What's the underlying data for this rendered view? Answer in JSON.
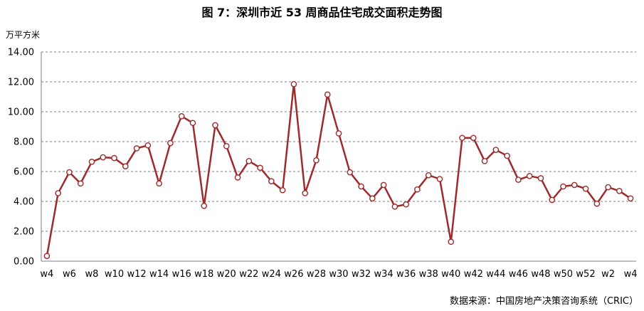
{
  "title": "图 7：深圳市近 53 周商品住宅成交面积走势图",
  "unit_label": "万平方米",
  "source": "数据来源：中国房地产决策咨询系统（CRIC）",
  "colors": {
    "series": "#9e2a2b",
    "grid": "#7f7f7f",
    "axis": "#7f7f7f",
    "marker_fill": "#ffffff"
  },
  "chart_data": {
    "type": "line",
    "title": "图 7：深圳市近 53 周商品住宅成交面积走势图",
    "ylabel": "万平方米",
    "xlabel": "",
    "ylim": [
      0,
      14
    ],
    "yticks": [
      "0.00",
      "2.00",
      "4.00",
      "6.00",
      "8.00",
      "10.00",
      "12.00",
      "14.00"
    ],
    "grid": "horizontal dashed",
    "legend": "none",
    "categories": [
      "w4",
      "w5",
      "w6",
      "w7",
      "w8",
      "w9",
      "w10",
      "w11",
      "w12",
      "w13",
      "w14",
      "w15",
      "w16",
      "w17",
      "w18",
      "w19",
      "w20",
      "w21",
      "w22",
      "w23",
      "w24",
      "w25",
      "w26",
      "w27",
      "w28",
      "w29",
      "w30",
      "w31",
      "w32",
      "w33",
      "w34",
      "w35",
      "w36",
      "w37",
      "w38",
      "w39",
      "w40",
      "w41",
      "w42",
      "w43",
      "w44",
      "w45",
      "w46",
      "w47",
      "w48",
      "w49",
      "w50",
      "w51",
      "w52",
      "w1",
      "w2",
      "w3",
      "w4"
    ],
    "xtick_labels": [
      "w4",
      "w6",
      "w8",
      "w10",
      "w12",
      "w14",
      "w16",
      "w18",
      "w20",
      "w22",
      "w24",
      "w26",
      "w28",
      "w30",
      "w32",
      "w34",
      "w36",
      "w38",
      "w40",
      "w42",
      "w44",
      "w46",
      "w48",
      "w50",
      "w52",
      "w2",
      "w4"
    ],
    "values": [
      0.35,
      4.55,
      5.95,
      5.2,
      6.65,
      6.95,
      6.9,
      6.35,
      7.55,
      7.75,
      5.2,
      7.9,
      9.7,
      9.25,
      3.7,
      9.1,
      7.7,
      5.6,
      6.7,
      6.25,
      5.35,
      4.75,
      11.85,
      4.55,
      6.75,
      11.15,
      8.55,
      5.95,
      5.0,
      4.2,
      5.1,
      3.65,
      3.8,
      4.8,
      5.75,
      5.5,
      1.3,
      8.25,
      8.25,
      6.7,
      7.45,
      7.05,
      5.45,
      5.7,
      5.55,
      4.1,
      5.0,
      5.1,
      4.85,
      3.85,
      4.95,
      4.7,
      4.2
    ]
  }
}
